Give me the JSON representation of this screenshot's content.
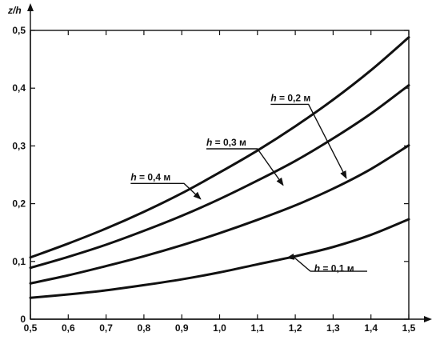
{
  "chart_data": {
    "type": "line",
    "ylabel": "z/h",
    "xlabel": "",
    "xlim": [
      0.5,
      1.5
    ],
    "ylim": [
      0,
      0.5
    ],
    "x_ticks": [
      0.5,
      0.6,
      0.7,
      0.8,
      0.9,
      1.0,
      1.1,
      1.2,
      1.3,
      1.4,
      1.5
    ],
    "y_ticks": [
      0,
      0.1,
      0.2,
      0.3,
      0.4,
      0.5
    ],
    "x_tick_labels": [
      "0,5",
      "0,6",
      "0,7",
      "0,8",
      "0,9",
      "1,0",
      "1,1",
      "1,2",
      "1,3",
      "1,4",
      "1,5"
    ],
    "y_tick_labels": [
      "0",
      "0,1",
      "0,2",
      "0,3",
      "0,4",
      "0,5"
    ],
    "grid": false,
    "series": [
      {
        "name": "h = 0,4 м",
        "x": [
          0.5,
          0.6,
          0.7,
          0.8,
          0.9,
          1.0,
          1.1,
          1.2,
          1.3,
          1.4,
          1.5
        ],
        "y": [
          0.107,
          0.131,
          0.157,
          0.186,
          0.218,
          0.254,
          0.292,
          0.334,
          0.38,
          0.431,
          0.488
        ]
      },
      {
        "name": "h = 0,3 м",
        "x": [
          0.5,
          0.6,
          0.7,
          0.8,
          0.9,
          1.0,
          1.1,
          1.2,
          1.3,
          1.4,
          1.5
        ],
        "y": [
          0.089,
          0.108,
          0.129,
          0.153,
          0.179,
          0.208,
          0.24,
          0.274,
          0.313,
          0.356,
          0.405
        ]
      },
      {
        "name": "h = 0,2 м",
        "x": [
          0.5,
          0.6,
          0.7,
          0.8,
          0.9,
          1.0,
          1.1,
          1.2,
          1.3,
          1.4,
          1.5
        ],
        "y": [
          0.062,
          0.076,
          0.092,
          0.109,
          0.128,
          0.149,
          0.172,
          0.197,
          0.226,
          0.26,
          0.301
        ]
      },
      {
        "name": "h = 0,1 м",
        "x": [
          0.5,
          0.6,
          0.7,
          0.8,
          0.9,
          1.0,
          1.1,
          1.2,
          1.3,
          1.4,
          1.5
        ],
        "y": [
          0.037,
          0.043,
          0.05,
          0.059,
          0.069,
          0.081,
          0.095,
          0.109,
          0.125,
          0.146,
          0.173
        ]
      }
    ],
    "annotations": [
      {
        "label_var": "h",
        "label_rest": " = 0,4 м",
        "series": "h = 0,4 м",
        "text_at": [
          0.765,
          0.235
        ],
        "line_to": [
          0.906,
          0.235
        ],
        "arrow_to": [
          0.95,
          0.208
        ]
      },
      {
        "label_var": "h",
        "label_rest": " = 0,3 м",
        "series": "h = 0,3 м",
        "text_at": [
          0.965,
          0.295
        ],
        "line_to": [
          1.1,
          0.295
        ],
        "arrow_to": [
          1.168,
          0.232
        ]
      },
      {
        "label_var": "h",
        "label_rest": " = 0,2 м",
        "series": "h = 0,2 м",
        "text_at": [
          1.135,
          0.372
        ],
        "line_to": [
          1.235,
          0.372
        ],
        "arrow_to": [
          1.335,
          0.244
        ]
      },
      {
        "label_var": "h",
        "label_rest": " = 0,1 м",
        "series": "h = 0,1 м",
        "text_at": [
          1.25,
          0.077
        ],
        "line_to": [
          1.195,
          0.108
        ],
        "arrow_to": [
          1.178,
          0.106
        ],
        "underline": [
          1.24,
          1.39,
          0.083
        ]
      }
    ]
  }
}
